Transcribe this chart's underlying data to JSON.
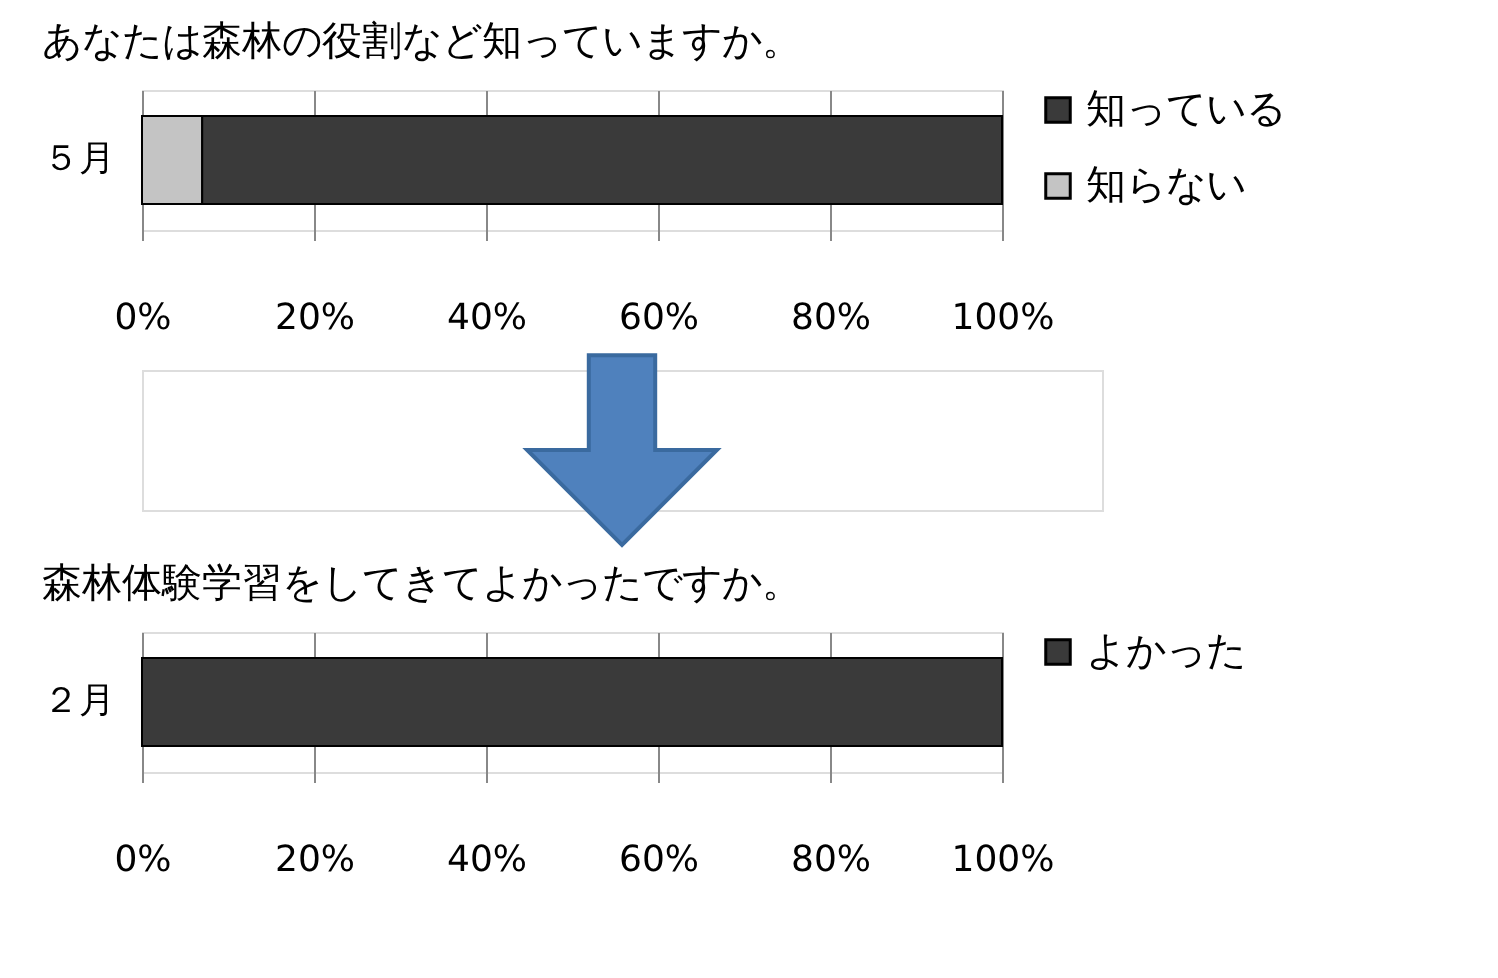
{
  "chart_data": [
    {
      "type": "bar",
      "orientation": "horizontal",
      "stacked": true,
      "title": "あなたは森林の役割など知っていますか。",
      "categories": [
        "５月"
      ],
      "series": [
        {
          "name": "知らない",
          "color": "#c4c4c4",
          "values": [
            7
          ]
        },
        {
          "name": "知っている",
          "color": "#3a3a3a",
          "values": [
            93
          ]
        }
      ],
      "xlim": [
        0,
        100
      ],
      "xticks": [
        {
          "value": 0,
          "label": "0%"
        },
        {
          "value": 20,
          "label": "20%"
        },
        {
          "value": 40,
          "label": "40%"
        },
        {
          "value": 60,
          "label": "60%"
        },
        {
          "value": 80,
          "label": "80%"
        },
        {
          "value": 100,
          "label": "100%"
        }
      ],
      "grid": "x",
      "legend": "right"
    },
    {
      "type": "bar",
      "orientation": "horizontal",
      "stacked": true,
      "title": "森林体験学習をしてきてよかったですか。",
      "categories": [
        "２月"
      ],
      "series": [
        {
          "name": "よかった",
          "color": "#3a3a3a",
          "values": [
            100
          ]
        }
      ],
      "xlim": [
        0,
        100
      ],
      "xticks": [
        {
          "value": 0,
          "label": "0%"
        },
        {
          "value": 20,
          "label": "20%"
        },
        {
          "value": 40,
          "label": "40%"
        },
        {
          "value": 60,
          "label": "60%"
        },
        {
          "value": 80,
          "label": "80%"
        },
        {
          "value": 100,
          "label": "100%"
        }
      ],
      "grid": "x",
      "legend": "right"
    }
  ]
}
